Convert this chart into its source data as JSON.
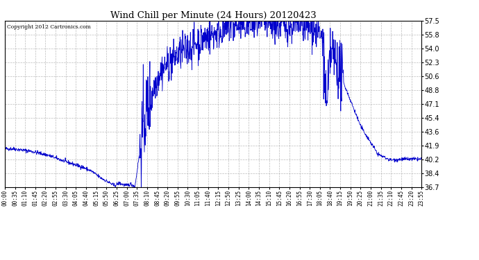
{
  "title": "Wind Chill per Minute (24 Hours) 20120423",
  "copyright": "Copyright 2012 Cartronics.com",
  "line_color": "#0000cc",
  "bg_color": "#ffffff",
  "grid_color": "#aaaaaa",
  "yticks": [
    36.7,
    38.4,
    40.2,
    41.9,
    43.6,
    45.4,
    47.1,
    48.8,
    50.6,
    52.3,
    54.0,
    55.8,
    57.5
  ],
  "ymin": 36.7,
  "ymax": 57.5,
  "xtick_labels": [
    "00:00",
    "00:35",
    "01:10",
    "01:45",
    "02:20",
    "02:55",
    "03:30",
    "04:05",
    "04:40",
    "05:15",
    "05:50",
    "06:25",
    "07:00",
    "07:35",
    "08:10",
    "08:45",
    "09:20",
    "09:55",
    "10:30",
    "11:05",
    "11:40",
    "12:15",
    "12:50",
    "13:25",
    "14:00",
    "14:35",
    "15:10",
    "15:45",
    "16:20",
    "16:55",
    "17:30",
    "18:05",
    "18:40",
    "19:15",
    "19:50",
    "20:25",
    "21:00",
    "21:35",
    "22:10",
    "22:45",
    "23:20",
    "23:55"
  ],
  "figwidth": 6.9,
  "figheight": 3.75,
  "dpi": 100
}
